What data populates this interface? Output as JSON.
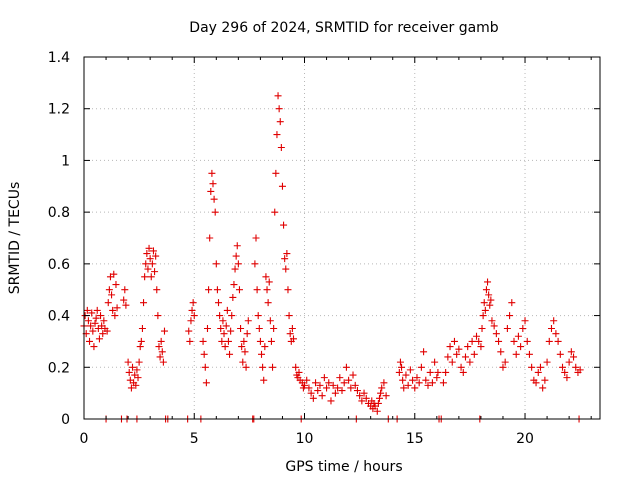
{
  "chart_data": {
    "type": "scatter",
    "title": "Day 296 of 2024, SRMTID for receiver gamb",
    "xlabel": "GPS time / hours",
    "ylabel": "SRMTID / TECUs",
    "xlim": [
      0,
      23.4
    ],
    "ylim": [
      0,
      1.4
    ],
    "xticks": [
      0,
      5,
      10,
      15,
      20
    ],
    "xtick_labels": [
      "0",
      "5",
      "10",
      "15",
      "20"
    ],
    "yticks": [
      0,
      0.2,
      0.4,
      0.6,
      0.8,
      1.0,
      1.2,
      1.4
    ],
    "ytick_labels": [
      "0",
      "0.2",
      "0.4",
      "0.6",
      "0.8",
      "1",
      "1.2",
      "1.4"
    ],
    "grid": true,
    "marker": "+",
    "marker_color": "#e00000",
    "series": [
      {
        "name": "SRMTID",
        "points": [
          [
            0.0,
            0.36
          ],
          [
            0.05,
            0.4
          ],
          [
            0.1,
            0.33
          ],
          [
            0.15,
            0.42
          ],
          [
            0.2,
            0.38
          ],
          [
            0.25,
            0.3
          ],
          [
            0.3,
            0.36
          ],
          [
            0.35,
            0.41
          ],
          [
            0.4,
            0.34
          ],
          [
            0.45,
            0.28
          ],
          [
            0.5,
            0.37
          ],
          [
            0.55,
            0.39
          ],
          [
            0.6,
            0.42
          ],
          [
            0.65,
            0.35
          ],
          [
            0.7,
            0.31
          ],
          [
            0.75,
            0.4
          ],
          [
            0.8,
            0.36
          ],
          [
            0.85,
            0.33
          ],
          [
            0.9,
            0.38
          ],
          [
            0.95,
            0.35
          ],
          [
            1.05,
            0.34
          ],
          [
            1.1,
            0.45
          ],
          [
            1.15,
            0.5
          ],
          [
            1.2,
            0.55
          ],
          [
            1.25,
            0.48
          ],
          [
            1.3,
            0.42
          ],
          [
            1.35,
            0.56
          ],
          [
            1.4,
            0.4
          ],
          [
            1.45,
            0.52
          ],
          [
            1.5,
            0.43
          ],
          [
            1.0,
            0.0
          ],
          [
            1.7,
            0.0
          ],
          [
            1.8,
            0.46
          ],
          [
            1.85,
            0.5
          ],
          [
            1.9,
            0.44
          ],
          [
            1.95,
            0.0
          ],
          [
            2.0,
            0.22
          ],
          [
            2.05,
            0.18
          ],
          [
            2.1,
            0.15
          ],
          [
            2.15,
            0.12
          ],
          [
            2.2,
            0.2
          ],
          [
            2.25,
            0.14
          ],
          [
            2.3,
            0.17
          ],
          [
            2.35,
            0.13
          ],
          [
            2.4,
            0.19
          ],
          [
            2.45,
            0.16
          ],
          [
            2.5,
            0.22
          ],
          [
            2.55,
            0.28
          ],
          [
            2.6,
            0.3
          ],
          [
            2.65,
            0.35
          ],
          [
            2.7,
            0.45
          ],
          [
            2.75,
            0.55
          ],
          [
            2.8,
            0.6
          ],
          [
            2.85,
            0.64
          ],
          [
            2.9,
            0.58
          ],
          [
            2.95,
            0.66
          ],
          [
            3.0,
            0.62
          ],
          [
            3.05,
            0.55
          ],
          [
            3.1,
            0.6
          ],
          [
            3.15,
            0.65
          ],
          [
            3.2,
            0.57
          ],
          [
            3.25,
            0.63
          ],
          [
            3.3,
            0.5
          ],
          [
            3.35,
            0.4
          ],
          [
            3.4,
            0.28
          ],
          [
            3.45,
            0.24
          ],
          [
            3.5,
            0.3
          ],
          [
            3.55,
            0.26
          ],
          [
            3.6,
            0.22
          ],
          [
            3.65,
            0.34
          ],
          [
            2.4,
            0.0
          ],
          [
            3.7,
            0.0
          ],
          [
            3.8,
            0.0
          ],
          [
            4.7,
            0.0
          ],
          [
            4.75,
            0.34
          ],
          [
            4.8,
            0.3
          ],
          [
            4.85,
            0.38
          ],
          [
            4.9,
            0.42
          ],
          [
            4.95,
            0.45
          ],
          [
            5.0,
            0.4
          ],
          [
            5.3,
            0.0
          ],
          [
            5.4,
            0.3
          ],
          [
            5.45,
            0.25
          ],
          [
            5.5,
            0.2
          ],
          [
            5.55,
            0.14
          ],
          [
            5.6,
            0.35
          ],
          [
            5.65,
            0.5
          ],
          [
            5.7,
            0.7
          ],
          [
            5.75,
            0.88
          ],
          [
            5.8,
            0.95
          ],
          [
            5.85,
            0.91
          ],
          [
            5.9,
            0.85
          ],
          [
            5.95,
            0.8
          ],
          [
            6.0,
            0.6
          ],
          [
            6.05,
            0.5
          ],
          [
            6.1,
            0.45
          ],
          [
            6.15,
            0.4
          ],
          [
            6.2,
            0.35
          ],
          [
            6.25,
            0.3
          ],
          [
            6.3,
            0.38
          ],
          [
            6.35,
            0.33
          ],
          [
            6.4,
            0.28
          ],
          [
            6.45,
            0.36
          ],
          [
            6.5,
            0.42
          ],
          [
            6.55,
            0.3
          ],
          [
            6.6,
            0.25
          ],
          [
            6.65,
            0.34
          ],
          [
            6.7,
            0.4
          ],
          [
            6.75,
            0.47
          ],
          [
            6.8,
            0.52
          ],
          [
            6.85,
            0.58
          ],
          [
            6.9,
            0.63
          ],
          [
            6.95,
            0.67
          ],
          [
            7.0,
            0.6
          ],
          [
            7.05,
            0.5
          ],
          [
            7.1,
            0.35
          ],
          [
            7.15,
            0.28
          ],
          [
            7.2,
            0.22
          ],
          [
            7.25,
            0.3
          ],
          [
            7.3,
            0.26
          ],
          [
            7.35,
            0.2
          ],
          [
            7.4,
            0.33
          ],
          [
            7.45,
            0.38
          ],
          [
            7.65,
            0.0
          ],
          [
            7.7,
            0.0
          ],
          [
            7.75,
            0.6
          ],
          [
            7.8,
            0.7
          ],
          [
            7.85,
            0.5
          ],
          [
            7.9,
            0.4
          ],
          [
            7.95,
            0.35
          ],
          [
            8.0,
            0.3
          ],
          [
            8.05,
            0.25
          ],
          [
            8.1,
            0.2
          ],
          [
            8.15,
            0.15
          ],
          [
            8.2,
            0.28
          ],
          [
            8.25,
            0.55
          ],
          [
            8.3,
            0.5
          ],
          [
            8.35,
            0.45
          ],
          [
            8.4,
            0.53
          ],
          [
            8.45,
            0.38
          ],
          [
            8.5,
            0.3
          ],
          [
            8.55,
            0.2
          ],
          [
            8.6,
            0.35
          ],
          [
            8.65,
            0.8
          ],
          [
            8.7,
            0.95
          ],
          [
            8.75,
            1.1
          ],
          [
            8.8,
            1.25
          ],
          [
            8.85,
            1.2
          ],
          [
            8.9,
            1.15
          ],
          [
            8.95,
            1.05
          ],
          [
            9.0,
            0.9
          ],
          [
            9.05,
            0.75
          ],
          [
            9.1,
            0.62
          ],
          [
            9.15,
            0.58
          ],
          [
            9.2,
            0.64
          ],
          [
            9.25,
            0.5
          ],
          [
            9.3,
            0.4
          ],
          [
            9.35,
            0.33
          ],
          [
            9.4,
            0.3
          ],
          [
            9.45,
            0.35
          ],
          [
            9.5,
            0.31
          ],
          [
            9.6,
            0.2
          ],
          [
            9.65,
            0.17
          ],
          [
            9.7,
            0.16
          ],
          [
            9.75,
            0.18
          ],
          [
            9.8,
            0.15
          ],
          [
            9.85,
            0.0
          ],
          [
            9.9,
            0.14
          ],
          [
            9.95,
            0.12
          ],
          [
            10.0,
            0.13
          ],
          [
            10.1,
            0.15
          ],
          [
            10.2,
            0.12
          ],
          [
            10.3,
            0.1
          ],
          [
            10.4,
            0.08
          ],
          [
            10.5,
            0.14
          ],
          [
            10.6,
            0.11
          ],
          [
            10.7,
            0.13
          ],
          [
            10.8,
            0.09
          ],
          [
            10.9,
            0.16
          ],
          [
            11.0,
            0.12
          ],
          [
            11.1,
            0.14
          ],
          [
            11.2,
            0.07
          ],
          [
            11.3,
            0.13
          ],
          [
            11.4,
            0.1
          ],
          [
            11.5,
            0.12
          ],
          [
            11.6,
            0.16
          ],
          [
            11.7,
            0.11
          ],
          [
            11.8,
            0.14
          ],
          [
            11.9,
            0.2
          ],
          [
            12.0,
            0.15
          ],
          [
            12.1,
            0.12
          ],
          [
            12.2,
            0.17
          ],
          [
            12.3,
            0.13
          ],
          [
            12.35,
            0.0
          ],
          [
            12.4,
            0.11
          ],
          [
            12.5,
            0.09
          ],
          [
            12.6,
            0.07
          ],
          [
            12.7,
            0.1
          ],
          [
            12.8,
            0.08
          ],
          [
            12.9,
            0.06
          ],
          [
            13.0,
            0.05
          ],
          [
            13.05,
            0.07
          ],
          [
            13.1,
            0.04
          ],
          [
            13.15,
            0.06
          ],
          [
            13.2,
            0.05
          ],
          [
            13.3,
            0.03
          ],
          [
            13.35,
            0.06
          ],
          [
            13.4,
            0.08
          ],
          [
            13.45,
            0.1
          ],
          [
            13.5,
            0.12
          ],
          [
            13.6,
            0.14
          ],
          [
            13.7,
            0.09
          ],
          [
            13.8,
            0.0
          ],
          [
            14.2,
            0.0
          ],
          [
            14.3,
            0.18
          ],
          [
            14.35,
            0.22
          ],
          [
            14.4,
            0.2
          ],
          [
            14.45,
            0.15
          ],
          [
            14.5,
            0.12
          ],
          [
            14.6,
            0.17
          ],
          [
            14.7,
            0.13
          ],
          [
            14.8,
            0.19
          ],
          [
            14.9,
            0.15
          ],
          [
            15.0,
            0.12
          ],
          [
            15.1,
            0.16
          ],
          [
            15.2,
            0.14
          ],
          [
            15.3,
            0.2
          ],
          [
            15.4,
            0.26
          ],
          [
            15.5,
            0.15
          ],
          [
            15.6,
            0.13
          ],
          [
            15.7,
            0.18
          ],
          [
            15.8,
            0.14
          ],
          [
            15.9,
            0.22
          ],
          [
            16.0,
            0.16
          ],
          [
            16.05,
            0.18
          ],
          [
            16.1,
            0.0
          ],
          [
            16.2,
            0.0
          ],
          [
            16.3,
            0.14
          ],
          [
            16.4,
            0.18
          ],
          [
            16.5,
            0.24
          ],
          [
            16.6,
            0.28
          ],
          [
            16.7,
            0.22
          ],
          [
            16.8,
            0.3
          ],
          [
            16.9,
            0.25
          ],
          [
            17.0,
            0.27
          ],
          [
            17.1,
            0.2
          ],
          [
            17.2,
            0.18
          ],
          [
            17.3,
            0.24
          ],
          [
            17.4,
            0.28
          ],
          [
            17.5,
            0.22
          ],
          [
            17.6,
            0.3
          ],
          [
            17.7,
            0.25
          ],
          [
            17.8,
            0.32
          ],
          [
            17.9,
            0.3
          ],
          [
            17.95,
            0.0
          ],
          [
            18.0,
            0.28
          ],
          [
            18.05,
            0.35
          ],
          [
            18.1,
            0.4
          ],
          [
            18.15,
            0.45
          ],
          [
            18.2,
            0.42
          ],
          [
            18.25,
            0.5
          ],
          [
            18.3,
            0.53
          ],
          [
            18.35,
            0.48
          ],
          [
            18.4,
            0.44
          ],
          [
            18.45,
            0.46
          ],
          [
            18.5,
            0.38
          ],
          [
            18.6,
            0.36
          ],
          [
            18.7,
            0.33
          ],
          [
            18.8,
            0.3
          ],
          [
            18.9,
            0.26
          ],
          [
            19.0,
            0.2
          ],
          [
            19.1,
            0.22
          ],
          [
            19.2,
            0.35
          ],
          [
            19.3,
            0.4
          ],
          [
            19.4,
            0.45
          ],
          [
            19.5,
            0.3
          ],
          [
            19.6,
            0.25
          ],
          [
            19.7,
            0.32
          ],
          [
            19.8,
            0.28
          ],
          [
            19.9,
            0.35
          ],
          [
            20.0,
            0.38
          ],
          [
            20.1,
            0.3
          ],
          [
            20.2,
            0.25
          ],
          [
            20.3,
            0.2
          ],
          [
            20.4,
            0.15
          ],
          [
            20.5,
            0.14
          ],
          [
            20.6,
            0.18
          ],
          [
            20.7,
            0.2
          ],
          [
            20.8,
            0.12
          ],
          [
            20.9,
            0.15
          ],
          [
            21.0,
            0.22
          ],
          [
            21.1,
            0.3
          ],
          [
            21.2,
            0.35
          ],
          [
            21.3,
            0.38
          ],
          [
            21.4,
            0.33
          ],
          [
            21.5,
            0.3
          ],
          [
            21.6,
            0.25
          ],
          [
            21.7,
            0.2
          ],
          [
            21.8,
            0.18
          ],
          [
            21.9,
            0.16
          ],
          [
            22.0,
            0.22
          ],
          [
            22.1,
            0.26
          ],
          [
            22.2,
            0.24
          ],
          [
            22.3,
            0.2
          ],
          [
            22.4,
            0.18
          ],
          [
            22.45,
            0.0
          ],
          [
            22.5,
            0.19
          ]
        ]
      }
    ]
  }
}
